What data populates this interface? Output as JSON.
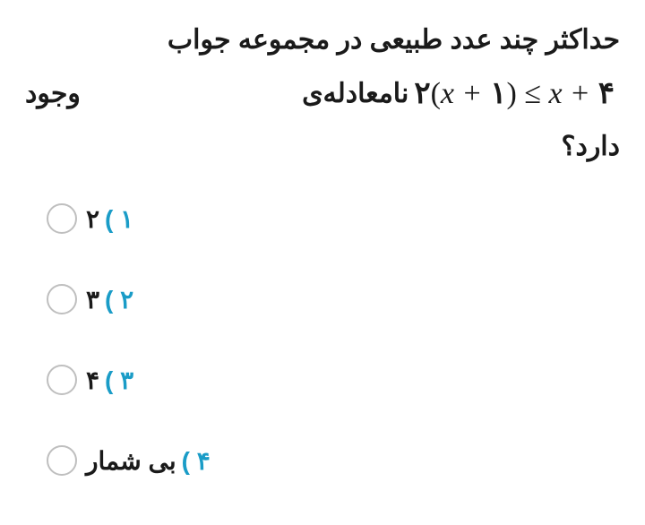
{
  "question": {
    "line1_right": "حداکثر چند عدد طبیعی در مجموعه جواب",
    "line2_right": "نامعادله‌ی",
    "line2_left": "وجود",
    "line3": "دارد؟",
    "formula": {
      "lhs_coef": "۲",
      "lhs_open": "(",
      "lhs_var": "x",
      "lhs_plus": "+",
      "lhs_const": "۱",
      "lhs_close": ")",
      "rel": "≤",
      "rhs_var": "x",
      "rhs_plus": "+",
      "rhs_const": "۴"
    }
  },
  "options": [
    {
      "num": "۱",
      "paren": ")",
      "answer": "۲"
    },
    {
      "num": "۲",
      "paren": ")",
      "answer": "۳"
    },
    {
      "num": "۳",
      "paren": ")",
      "answer": "۴"
    },
    {
      "num": "۴",
      "paren": ")",
      "answer": "بی شمار"
    }
  ]
}
